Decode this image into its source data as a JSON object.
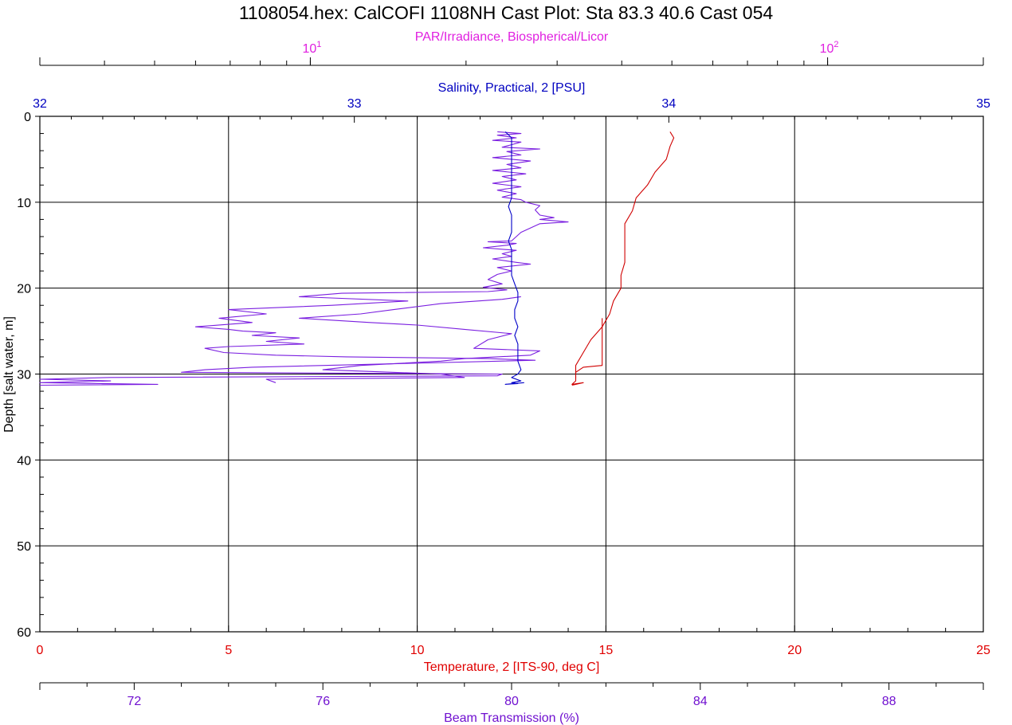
{
  "chart_data": {
    "type": "line",
    "title": "1108054.hex: CalCOFI 1108NH Cast Plot:  Sta 83.3  40.6  Cast 054",
    "grid": true,
    "y_axis": {
      "label": "Depth [salt water, m]",
      "range": [
        0,
        60
      ],
      "inverted": true,
      "ticks": [
        0,
        10,
        20,
        30,
        40,
        50,
        60
      ],
      "color": "#000000"
    },
    "axes": {
      "par": {
        "label": "PAR/Irradiance, Biospherical/Licor",
        "position": "top",
        "scale": "log",
        "range": [
          3,
          200
        ],
        "tick_labels": [
          {
            "value": 10,
            "base": "10",
            "exp": "1"
          },
          {
            "value": 100,
            "base": "10",
            "exp": "2"
          }
        ],
        "color": "#e020e0"
      },
      "salinity": {
        "label": "Salinity, Practical, 2 [PSU]",
        "position": "top",
        "range": [
          32,
          35
        ],
        "ticks": [
          32,
          33,
          34,
          35
        ],
        "color": "#0000c0"
      },
      "temperature": {
        "label": "Temperature, 2 [ITS-90, deg C]",
        "position": "bottom",
        "range": [
          0,
          25
        ],
        "ticks": [
          0,
          5,
          10,
          15,
          20,
          25
        ],
        "color": "#e00000"
      },
      "beam": {
        "label": "Beam Transmission (%)",
        "position": "bottom",
        "range": [
          70,
          90
        ],
        "ticks": [
          72,
          76,
          80,
          84,
          88
        ],
        "color": "#7010d0"
      }
    },
    "series": [
      {
        "axis": "beam",
        "color": "#7a1ee0",
        "points": [
          [
            79.7,
            1.8
          ],
          [
            80.2,
            2.0
          ],
          [
            79.7,
            2.2
          ],
          [
            80.1,
            2.5
          ],
          [
            79.6,
            2.8
          ],
          [
            80.2,
            3.0
          ],
          [
            80.0,
            3.3
          ],
          [
            79.8,
            3.6
          ],
          [
            80.6,
            3.8
          ],
          [
            79.9,
            4.1
          ],
          [
            80.2,
            4.5
          ],
          [
            79.6,
            4.8
          ],
          [
            80.4,
            5.2
          ],
          [
            79.9,
            5.6
          ],
          [
            80.2,
            6.0
          ],
          [
            79.6,
            6.3
          ],
          [
            80.3,
            6.7
          ],
          [
            79.8,
            7.0
          ],
          [
            80.1,
            7.4
          ],
          [
            79.6,
            7.8
          ],
          [
            80.2,
            8.2
          ],
          [
            79.7,
            8.6
          ],
          [
            80.1,
            9.0
          ],
          [
            79.8,
            9.4
          ],
          [
            80.2,
            9.7
          ],
          [
            80.3,
            10.0
          ],
          [
            80.6,
            10.4
          ],
          [
            80.5,
            10.9
          ],
          [
            80.6,
            11.5
          ],
          [
            80.9,
            11.8
          ],
          [
            80.6,
            12.0
          ],
          [
            81.2,
            12.3
          ],
          [
            80.6,
            12.5
          ],
          [
            80.2,
            13.5
          ],
          [
            80.0,
            14.5
          ],
          [
            79.5,
            14.6
          ],
          [
            80.1,
            14.8
          ],
          [
            79.9,
            15.0
          ],
          [
            79.4,
            15.3
          ],
          [
            80.1,
            15.6
          ],
          [
            79.8,
            16.0
          ],
          [
            80.0,
            16.3
          ],
          [
            79.6,
            16.6
          ],
          [
            80.1,
            17.0
          ],
          [
            80.4,
            17.2
          ],
          [
            79.7,
            17.6
          ],
          [
            80.0,
            18.0
          ],
          [
            79.7,
            18.4
          ],
          [
            79.5,
            19.0
          ],
          [
            79.8,
            19.5
          ],
          [
            79.4,
            19.9
          ],
          [
            79.9,
            20.2
          ],
          [
            79.5,
            20.4
          ],
          [
            76.4,
            20.6
          ],
          [
            75.5,
            21.0
          ],
          [
            77.8,
            21.5
          ],
          [
            76.2,
            22.0
          ],
          [
            74.0,
            22.5
          ],
          [
            74.8,
            23.0
          ],
          [
            73.8,
            23.5
          ],
          [
            74.5,
            24.0
          ],
          [
            73.3,
            24.5
          ],
          [
            74.0,
            24.8
          ],
          [
            74.3,
            25.0
          ],
          [
            75.0,
            25.2
          ],
          [
            74.5,
            25.5
          ],
          [
            75.5,
            25.8
          ],
          [
            74.8,
            26.2
          ],
          [
            75.6,
            26.5
          ],
          [
            74.0,
            26.8
          ],
          [
            73.5,
            27.0
          ],
          [
            73.9,
            27.5
          ],
          [
            75.0,
            27.8
          ],
          [
            76.5,
            28.0
          ],
          [
            79.5,
            28.2
          ],
          [
            80.5,
            28.4
          ],
          [
            77.5,
            28.8
          ],
          [
            74.5,
            29.2
          ],
          [
            73.5,
            29.5
          ],
          [
            73.0,
            29.8
          ],
          [
            79.8,
            30.0
          ],
          [
            79.7,
            30.2
          ],
          [
            71.5,
            30.4
          ],
          [
            70.0,
            30.6
          ],
          [
            71.5,
            30.8
          ],
          [
            70.0,
            31.0
          ],
          [
            72.5,
            31.2
          ],
          [
            70.0,
            31.3
          ]
        ]
      },
      {
        "axis": "beam",
        "color": "#7a1ee0",
        "points": [
          [
            80.2,
            21.0
          ],
          [
            79.8,
            21.3
          ],
          [
            78.5,
            21.8
          ],
          [
            77.5,
            22.5
          ],
          [
            76.8,
            23.0
          ],
          [
            75.5,
            23.5
          ],
          [
            77.0,
            24.0
          ],
          [
            78.0,
            24.3
          ],
          [
            79.0,
            24.8
          ],
          [
            80.0,
            25.3
          ],
          [
            79.5,
            26.0
          ],
          [
            79.2,
            27.0
          ],
          [
            80.6,
            27.3
          ],
          [
            80.4,
            27.8
          ],
          [
            79.0,
            28.2
          ],
          [
            78.5,
            28.5
          ],
          [
            76.8,
            29.0
          ],
          [
            76.0,
            29.5
          ],
          [
            78.5,
            30.0
          ],
          [
            79.0,
            30.4
          ],
          [
            74.8,
            30.6
          ],
          [
            75.0,
            31.0
          ]
        ]
      },
      {
        "axis": "salinity",
        "color": "#0000c8",
        "points": [
          [
            33.48,
            1.8
          ],
          [
            33.5,
            2.5
          ],
          [
            33.5,
            3.5
          ],
          [
            33.5,
            4.5
          ],
          [
            33.5,
            5.5
          ],
          [
            33.5,
            6.5
          ],
          [
            33.5,
            7.5
          ],
          [
            33.5,
            8.5
          ],
          [
            33.5,
            9.5
          ],
          [
            33.49,
            10.5
          ],
          [
            33.5,
            11.5
          ],
          [
            33.5,
            12.5
          ],
          [
            33.5,
            13.5
          ],
          [
            33.49,
            14.5
          ],
          [
            33.5,
            15.5
          ],
          [
            33.5,
            16.5
          ],
          [
            33.5,
            17.5
          ],
          [
            33.5,
            18.5
          ],
          [
            33.51,
            19.5
          ],
          [
            33.52,
            20.5
          ],
          [
            33.52,
            21.5
          ],
          [
            33.51,
            22.5
          ],
          [
            33.51,
            23.5
          ],
          [
            33.52,
            24.5
          ],
          [
            33.51,
            25.5
          ],
          [
            33.52,
            26.5
          ],
          [
            33.52,
            27.5
          ],
          [
            33.52,
            28.5
          ],
          [
            33.53,
            29.5
          ],
          [
            33.52,
            30.0
          ],
          [
            33.5,
            30.4
          ],
          [
            33.53,
            30.8
          ],
          [
            33.5,
            31.0
          ],
          [
            33.52,
            31.1
          ],
          [
            33.48,
            31.2
          ],
          [
            33.54,
            31.0
          ]
        ]
      },
      {
        "axis": "temperature",
        "color": "#d00000",
        "points": [
          [
            16.7,
            1.8
          ],
          [
            16.8,
            2.5
          ],
          [
            16.7,
            3.5
          ],
          [
            16.6,
            5.0
          ],
          [
            16.3,
            6.5
          ],
          [
            16.1,
            8.0
          ],
          [
            15.8,
            9.5
          ],
          [
            15.7,
            11.0
          ],
          [
            15.5,
            12.5
          ],
          [
            15.5,
            14.0
          ],
          [
            15.5,
            15.5
          ],
          [
            15.5,
            17.0
          ],
          [
            15.4,
            18.5
          ],
          [
            15.4,
            20.0
          ],
          [
            15.2,
            21.5
          ],
          [
            15.1,
            23.0
          ],
          [
            14.9,
            24.5
          ],
          [
            14.6,
            26.0
          ],
          [
            14.4,
            27.5
          ],
          [
            14.2,
            29.0
          ],
          [
            14.2,
            30.0
          ],
          [
            14.2,
            30.8
          ],
          [
            14.1,
            31.2
          ],
          [
            14.4,
            31.0
          ],
          [
            14.1,
            31.3
          ]
        ]
      },
      {
        "axis": "temperature",
        "color": "#d00000",
        "points": [
          [
            14.9,
            23.5
          ],
          [
            14.9,
            26.5
          ],
          [
            14.9,
            29.0
          ],
          [
            14.4,
            29.2
          ],
          [
            14.2,
            29.8
          ],
          [
            14.2,
            30.5
          ]
        ]
      }
    ]
  }
}
